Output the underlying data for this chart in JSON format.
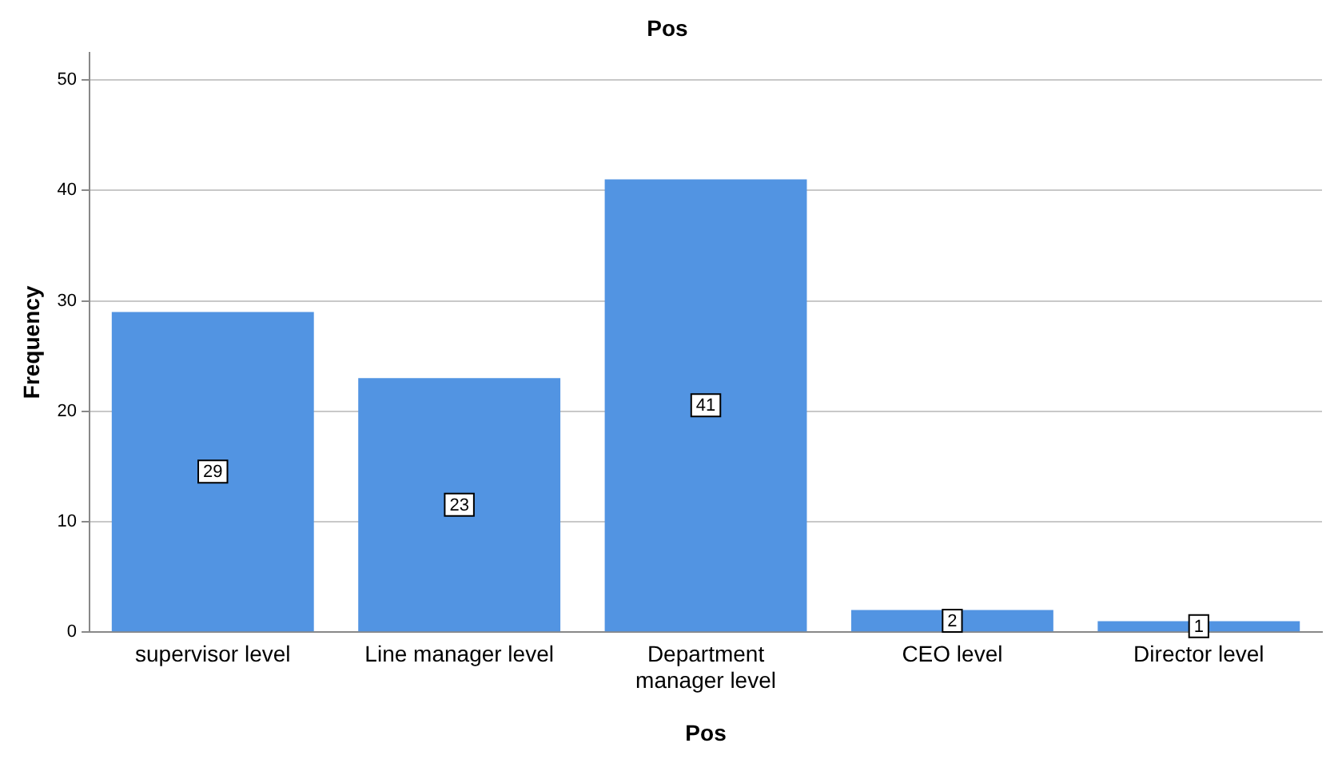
{
  "chart_data": {
    "type": "bar",
    "title": "Pos",
    "xlabel": "Pos",
    "ylabel": "Frequency",
    "categories": [
      "supervisor level",
      "Line manager level",
      "Department manager level",
      "CEO level",
      "Director level"
    ],
    "values": [
      29,
      23,
      41,
      2,
      1
    ],
    "color": "#5294e2",
    "ylim": [
      0,
      52.5
    ],
    "yticks": [
      0,
      10,
      20,
      30,
      40,
      50
    ],
    "grid": "y",
    "data_labels": true,
    "legend": false
  }
}
